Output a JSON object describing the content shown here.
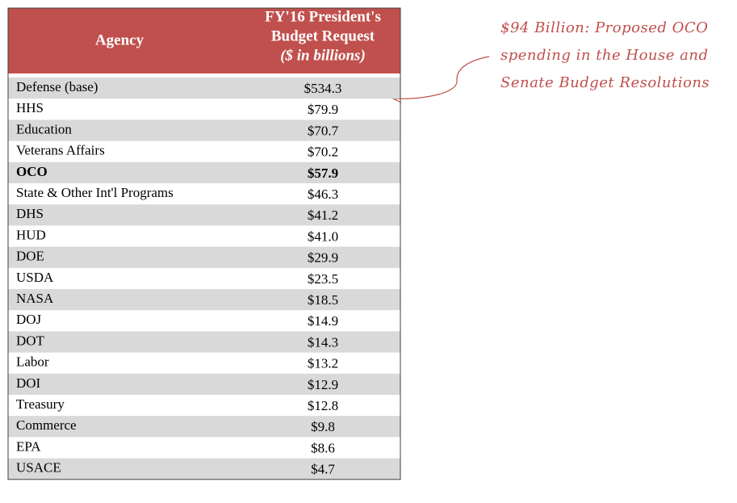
{
  "table": {
    "header": [
      "Agency",
      [
        "FY'16 President's",
        "Budget Request",
        "($ in billions)"
      ]
    ],
    "rows": [
      [
        "Defense (base)",
        "$534.3"
      ],
      [
        "HHS",
        "$79.9"
      ],
      [
        "Education",
        "$70.7"
      ],
      [
        "Veterans Affairs",
        "$70.2"
      ],
      [
        "OCO",
        "$57.9"
      ],
      [
        "State & Other Int'l Programs",
        "$46.3"
      ],
      [
        "DHS",
        "$41.2"
      ],
      [
        "HUD",
        "$41.0"
      ],
      [
        "DOE",
        "$29.9"
      ],
      [
        "USDA",
        "$23.5"
      ],
      [
        "NASA",
        "$18.5"
      ],
      [
        "DOJ",
        "$14.9"
      ],
      [
        "DOT",
        "$14.3"
      ],
      [
        "Labor",
        "$13.2"
      ],
      [
        "DOI",
        "$12.9"
      ],
      [
        "Treasury",
        "$12.8"
      ],
      [
        "Commerce",
        "$9.8"
      ],
      [
        "EPA",
        "$8.6"
      ],
      [
        "USACE",
        "$4.7"
      ]
    ],
    "highlight_row": 4
  },
  "annotation": {
    "lines": [
      "$94 Billion: Proposed OCO",
      "spending in the House and",
      "Senate Budget Resolutions"
    ]
  }
}
